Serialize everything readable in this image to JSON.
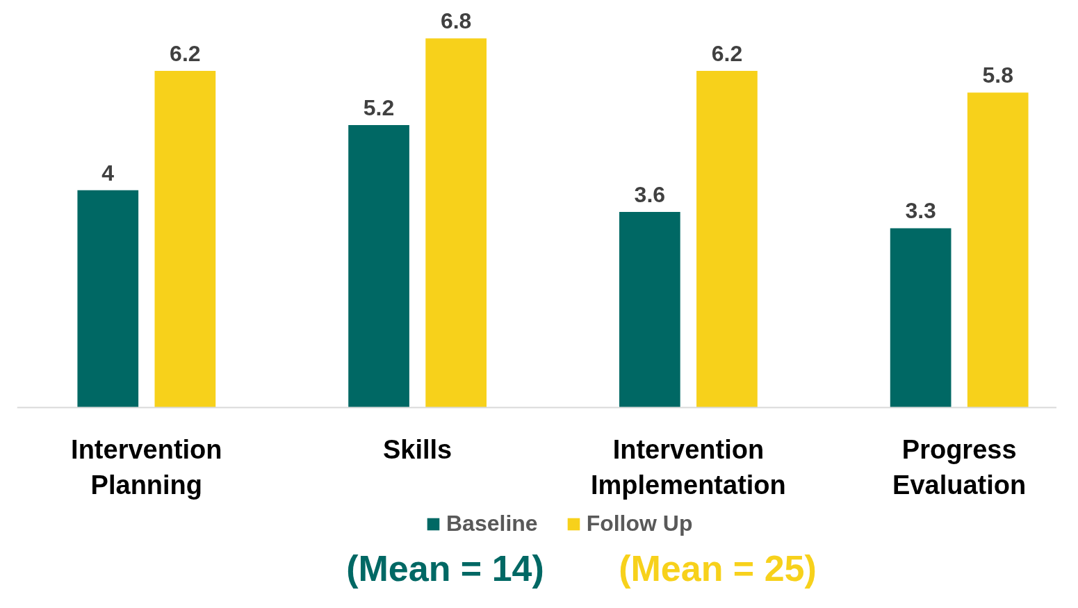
{
  "chart_data": {
    "type": "bar",
    "categories": [
      "Intervention Planning",
      "Skills",
      "Intervention Implementation",
      "Progress Evaluation"
    ],
    "series": [
      {
        "name": "Baseline",
        "color": "#006864",
        "values": [
          4,
          5.2,
          3.6,
          3.3
        ]
      },
      {
        "name": "Follow Up",
        "color": "#f7d11b",
        "values": [
          6.2,
          6.8,
          6.2,
          5.8
        ]
      }
    ],
    "data_labels": true,
    "legend": "bottom",
    "grid": false,
    "annotations": [
      "(Mean = 14)",
      "(Mean = 25)"
    ]
  }
}
